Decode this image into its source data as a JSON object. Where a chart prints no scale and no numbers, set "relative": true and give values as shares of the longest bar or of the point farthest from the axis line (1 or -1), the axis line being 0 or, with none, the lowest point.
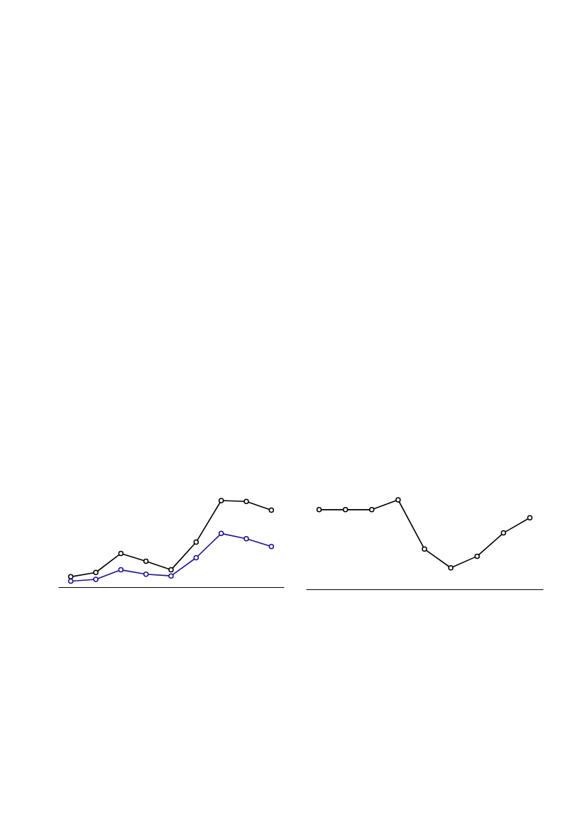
{
  "chart_data": [
    {
      "type": "line",
      "relative": true,
      "marker": "circle",
      "categories": [
        null,
        null,
        null,
        null,
        null,
        null,
        null,
        null,
        null
      ],
      "series": [
        {
          "color": "#000000",
          "values": [
            0.12,
            0.17,
            0.39,
            0.3,
            0.2,
            0.52,
            1.0,
            0.99,
            0.89
          ]
        },
        {
          "color": "#1c148c",
          "values": [
            0.07,
            0.09,
            0.2,
            0.15,
            0.13,
            0.34,
            0.62,
            0.56,
            0.47
          ]
        }
      ]
    },
    {
      "type": "line",
      "relative": true,
      "marker": "circle",
      "categories": [
        null,
        null,
        null,
        null,
        null,
        null,
        null,
        null,
        null
      ],
      "series": [
        {
          "color": "#000000",
          "values": [
            0.89,
            0.89,
            0.89,
            1.0,
            0.45,
            0.24,
            0.37,
            0.63,
            0.8
          ]
        }
      ]
    }
  ]
}
